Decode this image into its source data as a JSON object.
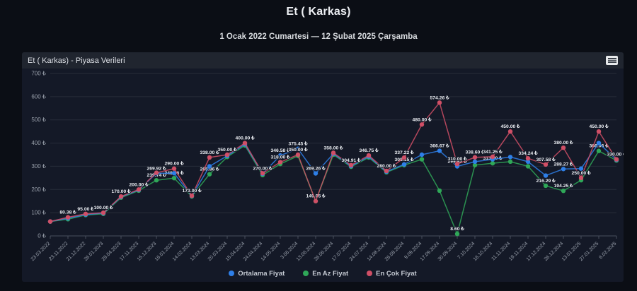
{
  "page": {
    "title": "Et ( Karkas)",
    "subtitle": "1 Ocak 2022 Cumartesi — 12 Şubat 2025 Çarşamba"
  },
  "panel": {
    "header_title": "Et ( Karkas) - Piyasa Verileri",
    "menu_icon": "context-menu-hamburger-icon"
  },
  "chart_data": {
    "type": "line",
    "title": "Et ( Karkas) - Piyasa Verileri",
    "currency": "₺",
    "ylim": [
      0,
      700
    ],
    "y_tick_labels": [
      "0 ₺",
      "100 ₺",
      "200 ₺",
      "300 ₺",
      "400 ₺",
      "500 ₺",
      "600 ₺",
      "700 ₺"
    ],
    "grid": "horizontal",
    "legend_position": "bottom",
    "categories": [
      "23.03.2022",
      "23.11.2022",
      "21.12.2022",
      "26.01.2023",
      "28.04.2023",
      "17.11.2023",
      "15.12.2023",
      "16.01.2024",
      "14.02.2024",
      "13.03.2024",
      "20.03.2024",
      "15.04.2024",
      "24.04.2024",
      "14.05.2024",
      "3.06.2024",
      "13.06.2024",
      "26.06.2024",
      "17.07.2024",
      "24.07.2024",
      "14.08.2024",
      "26.08.2024",
      "9.09.2024",
      "17.09.2024",
      "30.09.2024",
      "7.10.2024",
      "16.10.2024",
      "11.11.2024",
      "19.11.2024",
      "17.12.2024",
      "26.12.2024",
      "13.01.2025",
      "27.01.2025",
      "6.02.2025"
    ],
    "series": [
      {
        "name": "Ortalama Fiyat",
        "color": "#2e7fe8",
        "values": [
          62,
          76,
          92,
          98,
          168,
          198,
          269.92,
          270,
          172,
          300,
          345,
          395,
          268,
          346.58,
          375.45,
          269.26,
          354,
          301,
          342,
          277,
          308.15,
          350,
          366.67,
          299.82,
          320,
          330,
          340,
          320,
          260,
          288.27,
          290,
          400,
          328
        ],
        "point_labels": {
          "6": "269.92 ₺",
          "13": "346.58 ₺",
          "14": "375.45 ₺",
          "15": "269.26 ₺",
          "20": "308.15 ₺",
          "22": "366.67 ₺",
          "23": "299.82 ₺",
          "29": "288.27 ₺"
        }
      },
      {
        "name": "En Az Fiyat",
        "color": "#2fa758",
        "values": [
          62,
          72,
          90,
          95,
          165,
          195,
          239.74,
          248.96,
          170,
          265.86,
          340,
          390,
          262,
          310,
          345,
          149.95,
          350,
          298,
          338,
          274,
          305,
          330,
          195,
          8.6,
          305,
          313,
          320,
          300,
          216.29,
          194.25,
          240,
          366.06,
          325
        ],
        "point_labels": {
          "6": "239.74 ₺",
          "7": "248.96 ₺",
          "9": "265.86 ₺",
          "15": "149.95 ₺",
          "23": "8.60 ₺",
          "25": "313.00 ₺",
          "28": "216.29 ₺",
          "29": "194.25 ₺",
          "31": "366.06 ₺"
        }
      },
      {
        "name": "En Çok Fiyat",
        "color": "#d04f66",
        "values": [
          62,
          80.38,
          95,
          100,
          170,
          200,
          272,
          290,
          173,
          338,
          350,
          400,
          270,
          318,
          350,
          150,
          358,
          304.91,
          346.75,
          280,
          337.22,
          480,
          574.26,
          310,
          338.6,
          341.25,
          450,
          334.24,
          307.58,
          380,
          250,
          450,
          330
        ],
        "point_labels": {
          "1": "80.38 ₺",
          "2": "95.00 ₺",
          "3": "100.00 ₺",
          "4": "170.00 ₺",
          "5": "200.00 ₺",
          "7": "290.00 ₺",
          "8": "173.00 ₺",
          "9": "338.00 ₺",
          "10": "350.00 ₺",
          "11": "400.00 ₺",
          "12": "270.00 ₺",
          "13": "318.00 ₺",
          "14": "350.00 ₺",
          "16": "358.00 ₺",
          "17": "304.91 ₺",
          "18": "346.75 ₺",
          "19": "280.00 ₺",
          "20": "337.22 ₺",
          "21": "480.00 ₺",
          "22": "574.26 ₺",
          "23": "310.00 ₺",
          "24": "338.60 ₺",
          "25": "341.25 ₺",
          "26": "450.00 ₺",
          "27": "334.24 ₺",
          "28": "307.58 ₺",
          "29": "380.00 ₺",
          "30": "250.00 ₺",
          "31": "450.00 ₺",
          "32": "330.00 ₺"
        }
      }
    ]
  }
}
